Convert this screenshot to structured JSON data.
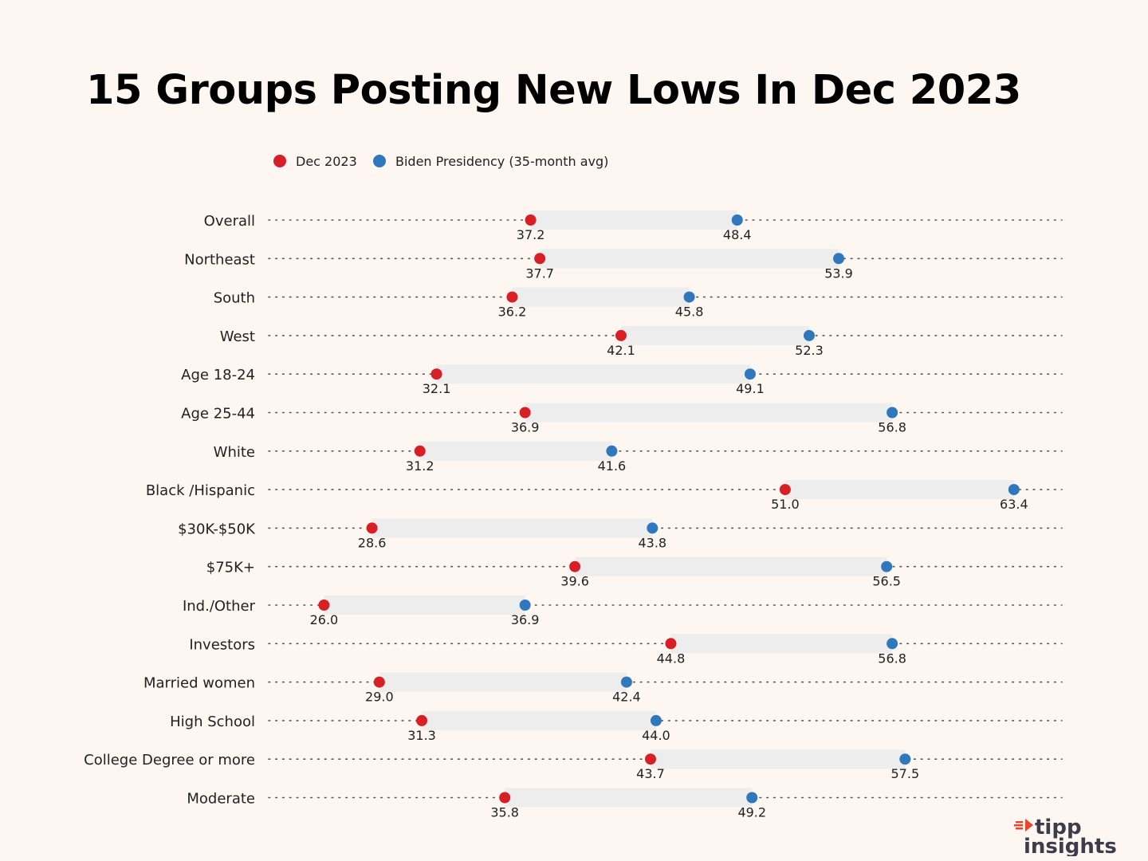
{
  "chart_data": {
    "type": "dumbbell",
    "title": "15 Groups Posting New Lows In Dec 2023",
    "xlabel": "",
    "ylabel": "",
    "xlim": [
      23,
      66
    ],
    "legend": {
      "placement": "top-left",
      "entries": [
        {
          "name": "Dec 2023",
          "color": "#d81f26"
        },
        {
          "name": "Biden Presidency (35-month avg)",
          "color": "#2f78bd"
        }
      ]
    },
    "categories": [
      "Overall",
      "Northeast",
      "South",
      "West",
      "Age 18-24",
      "Age 25-44",
      "White",
      "Black /Hispanic",
      "$30K-$50K",
      "$75K+",
      "Ind./Other",
      "Investors",
      "Married women",
      "High School",
      "College Degree or more",
      "Moderate"
    ],
    "series": [
      {
        "name": "Dec 2023",
        "values": [
          37.2,
          37.7,
          36.2,
          42.1,
          32.1,
          36.9,
          31.2,
          51.0,
          28.6,
          39.6,
          26.0,
          44.8,
          29.0,
          31.3,
          43.7,
          35.8
        ],
        "labels": [
          "37.2",
          "37.7",
          "36.2",
          "42.1",
          "32.1",
          "36.9",
          "31.2",
          "51.0",
          "28.6",
          "39.6",
          "26.0",
          "44.8",
          "29.0",
          "31.3",
          "43.7",
          "35.8"
        ]
      },
      {
        "name": "Biden Presidency (35-month avg)",
        "values": [
          48.4,
          53.9,
          45.8,
          52.3,
          49.1,
          56.8,
          41.6,
          63.4,
          43.8,
          56.5,
          36.9,
          56.8,
          42.4,
          44.0,
          57.5,
          49.2
        ],
        "labels": [
          "48.4",
          "53.9",
          "45.8",
          "52.3",
          "49.1",
          "56.8",
          "41.6",
          "63.4",
          "43.8",
          "56.5",
          "36.9",
          "56.8",
          "42.4",
          "44.0",
          "57.5",
          "49.2"
        ]
      }
    ],
    "colors": {
      "dec": "#d81f26",
      "avg": "#2f78bd",
      "range_bar": "#ededed",
      "dotted_line": "#555555",
      "background": "#fdf6f1"
    }
  },
  "logo": {
    "line1": "tipp",
    "line2": "insights",
    "accent_color": "#e8452f"
  }
}
